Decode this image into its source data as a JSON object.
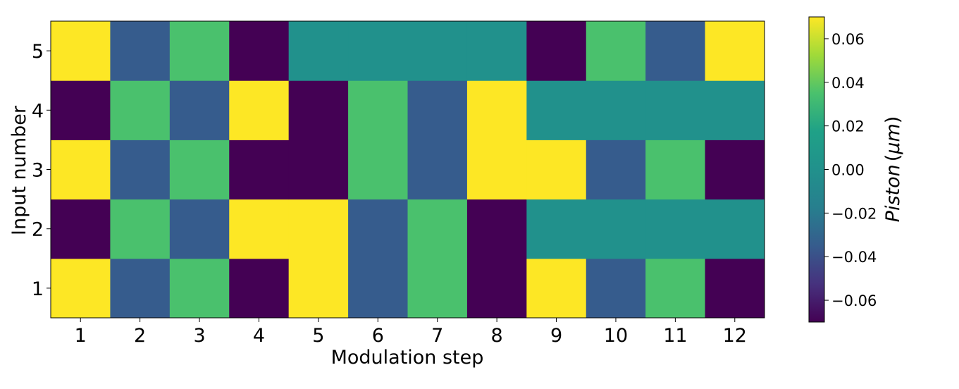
{
  "chart_data": {
    "type": "heatmap",
    "xlabel": "Modulation step",
    "ylabel": "Input number",
    "x": [
      1,
      2,
      3,
      4,
      5,
      6,
      7,
      8,
      9,
      10,
      11,
      12
    ],
    "y": [
      1,
      2,
      3,
      4,
      5
    ],
    "values": [
      [
        0.07,
        -0.035,
        0.035,
        -0.07,
        0.07,
        -0.035,
        0.035,
        -0.07,
        0.07,
        -0.035,
        0.035,
        -0.07
      ],
      [
        -0.07,
        0.035,
        -0.035,
        0.07,
        0.07,
        -0.035,
        0.035,
        -0.07,
        0.0,
        0.0,
        0.0,
        0.0
      ],
      [
        0.07,
        -0.035,
        0.035,
        -0.07,
        -0.07,
        0.035,
        -0.035,
        0.07,
        0.07,
        -0.035,
        0.035,
        -0.07
      ],
      [
        -0.07,
        0.035,
        -0.035,
        0.07,
        -0.07,
        0.035,
        -0.035,
        0.07,
        0.0,
        0.0,
        0.0,
        0.0
      ],
      [
        0.07,
        -0.035,
        0.035,
        -0.07,
        0.0,
        0.0,
        0.0,
        0.0,
        -0.07,
        0.035,
        -0.035,
        0.07
      ]
    ],
    "colormap": "viridis",
    "vmin": -0.07,
    "vmax": 0.07,
    "colorbar": {
      "label": "Piston (μm)",
      "label_parts": [
        "Piston",
        "(",
        "μm",
        ")"
      ],
      "ticks": [
        -0.06,
        -0.04,
        -0.02,
        0.0,
        0.02,
        0.04,
        0.06
      ],
      "tick_labels": [
        "−0.06",
        "−0.04",
        "−0.02",
        "0.00",
        "0.02",
        "0.04",
        "0.06"
      ]
    },
    "grid": false,
    "legend": "none"
  }
}
